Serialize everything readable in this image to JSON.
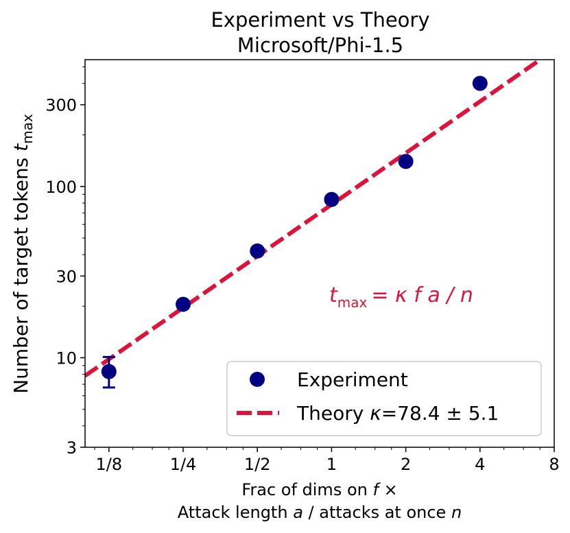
{
  "chart_data": {
    "type": "scatter",
    "title": "Experiment vs Theory",
    "subtitle": "Microsoft/Phi-1.5",
    "xlabel_line1": "Frac of dims on",
    "xlabel_line1_var": "f",
    "xlabel_line1_suffix": "×",
    "xlabel_line2_prefix": "Attack length",
    "xlabel_line2_var1": "a",
    "xlabel_line2_mid": "/ attacks at once",
    "xlabel_line2_var2": "n",
    "ylabel_text": "Number of target tokens",
    "ylabel_var": "t",
    "ylabel_sub": "max",
    "xscale": "log2",
    "yscale": "log10",
    "xlim": [
      0.1,
      8
    ],
    "ylim": [
      3,
      550
    ],
    "x_ticks": [
      {
        "value": 0.125,
        "label": "1/8"
      },
      {
        "value": 0.25,
        "label": "1/4"
      },
      {
        "value": 0.5,
        "label": "1/2"
      },
      {
        "value": 1,
        "label": "1"
      },
      {
        "value": 2,
        "label": "2"
      },
      {
        "value": 4,
        "label": "4"
      },
      {
        "value": 8,
        "label": "8"
      }
    ],
    "y_ticks": [
      {
        "value": 3,
        "label": "3"
      },
      {
        "value": 10,
        "label": "10"
      },
      {
        "value": 30,
        "label": "30"
      },
      {
        "value": 100,
        "label": "100"
      },
      {
        "value": 300,
        "label": "300"
      }
    ],
    "series": [
      {
        "name": "Experiment",
        "kind": "points",
        "color": "#000080",
        "x": [
          0.125,
          0.25,
          0.5,
          1,
          2,
          4
        ],
        "y": [
          8.3,
          20.5,
          42,
          84,
          140,
          400
        ],
        "y_err_low": [
          1.6,
          0,
          0,
          0,
          0,
          0
        ],
        "y_err_high": [
          1.8,
          0,
          0,
          0,
          0,
          0
        ]
      },
      {
        "name_prefix": "Theory",
        "name_var": "κ",
        "name_value": "=78.4 ± 5.1",
        "kind": "line",
        "style": "dashed",
        "color": "#dc143c",
        "slope": 78.4
      }
    ],
    "annotation": {
      "var": "t",
      "sub": "max",
      "formula": "= κ f a / n"
    },
    "legend_position": "lower-right",
    "grid": false
  }
}
